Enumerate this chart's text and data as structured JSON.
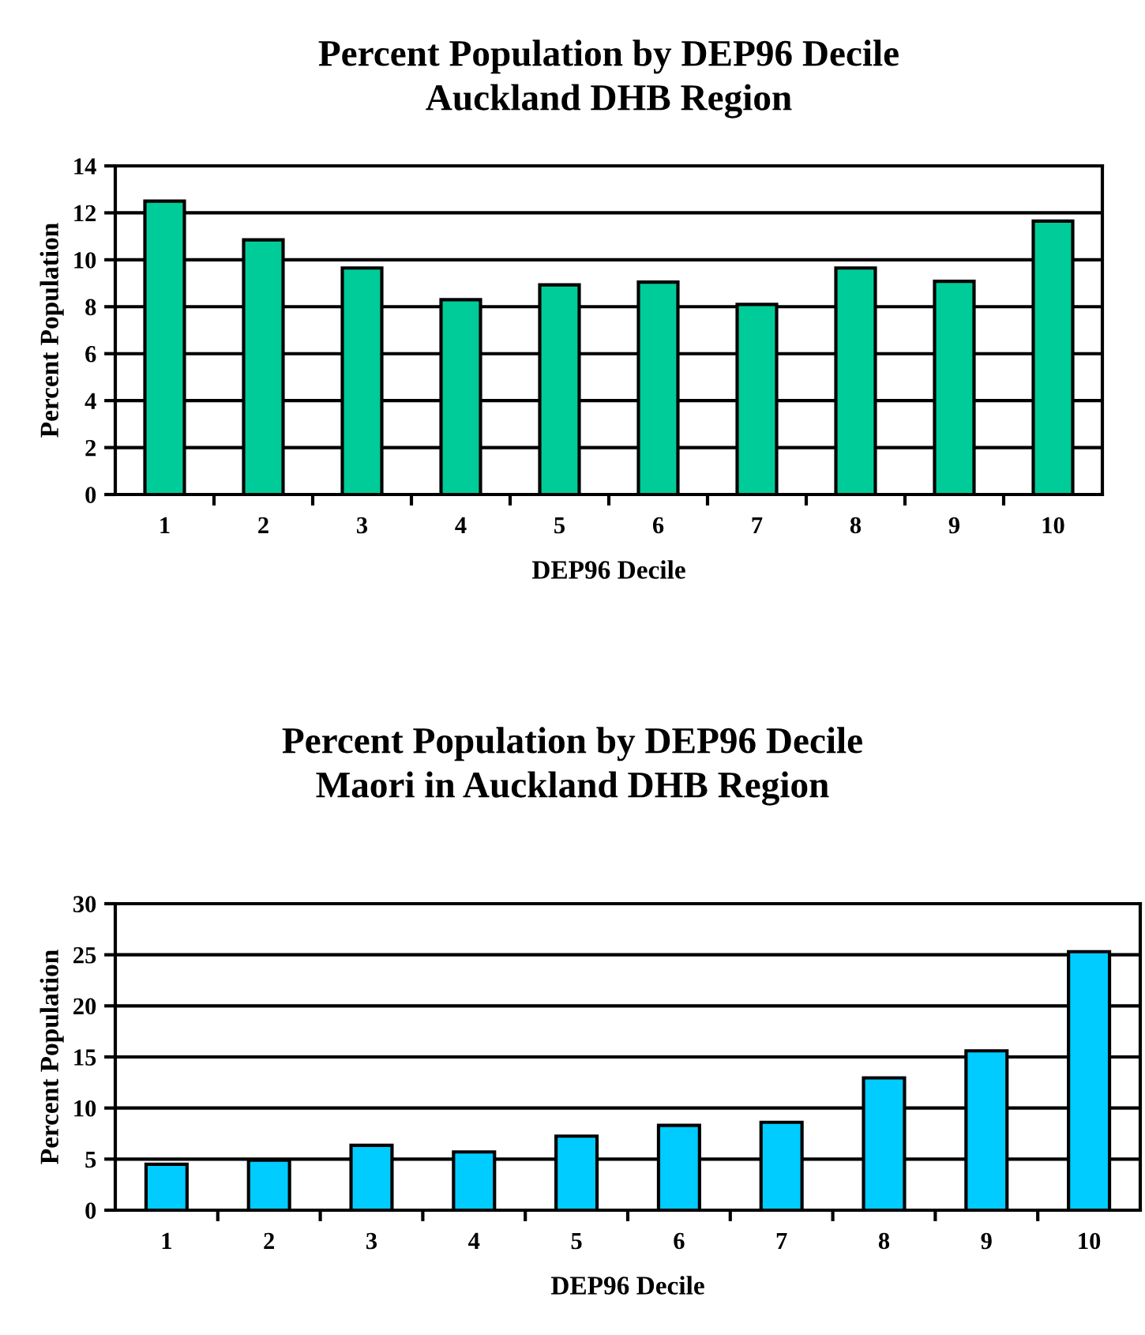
{
  "chart_data": [
    {
      "type": "bar",
      "title": "Percent Population by DEP96 Decile\nAuckland DHB Region",
      "xlabel": "DEP96 Decile",
      "ylabel": "Percent Population",
      "categories": [
        "1",
        "2",
        "3",
        "4",
        "5",
        "6",
        "7",
        "8",
        "9",
        "10"
      ],
      "series": [
        {
          "color": "#00cc99",
          "values": [
            12.5,
            10.85,
            9.65,
            8.3,
            8.93,
            9.05,
            8.1,
            9.65,
            9.08,
            11.65
          ]
        }
      ],
      "ylim": [
        0,
        14
      ],
      "yticks": [
        0,
        2,
        4,
        6,
        8,
        10,
        12,
        14
      ],
      "grid": "y",
      "legend": false
    },
    {
      "type": "bar",
      "title": "Percent Population by DEP96 Decile\nMaori in Auckland DHB Region",
      "xlabel": "DEP96 Decile",
      "ylabel": "Percent Population",
      "categories": [
        "1",
        "2",
        "3",
        "4",
        "5",
        "6",
        "7",
        "8",
        "9",
        "10"
      ],
      "series": [
        {
          "color": "#00ccff",
          "values": [
            4.5,
            4.9,
            6.35,
            5.7,
            7.25,
            8.3,
            8.6,
            12.95,
            15.6,
            25.3
          ]
        }
      ],
      "ylim": [
        0,
        30
      ],
      "yticks": [
        0,
        5,
        10,
        15,
        20,
        25,
        30
      ],
      "grid": "y",
      "legend": false
    }
  ]
}
